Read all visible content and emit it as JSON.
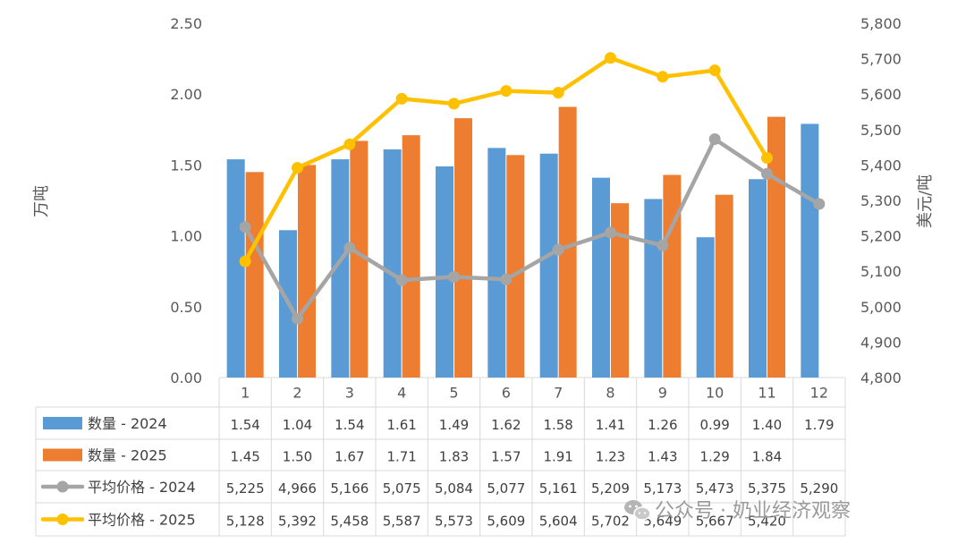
{
  "chart_data": {
    "type": "bar+line",
    "categories": [
      "1",
      "2",
      "3",
      "4",
      "5",
      "6",
      "7",
      "8",
      "9",
      "10",
      "11",
      "12"
    ],
    "ylabel_left": "万吨",
    "ylabel_right": "美元/吨",
    "ylim_left": [
      0,
      2.5
    ],
    "ylim_right": [
      4800,
      5800
    ],
    "left_ticks": [
      "0.00",
      "0.50",
      "1.00",
      "1.50",
      "2.00",
      "2.50"
    ],
    "right_ticks": [
      "4,800",
      "4,900",
      "5,000",
      "5,100",
      "5,200",
      "5,300",
      "5,400",
      "5,500",
      "5,600",
      "5,700",
      "5,800"
    ],
    "series": [
      {
        "name": "数量 - 2024",
        "kind": "bar",
        "axis": "left",
        "color": "#5B9BD5",
        "values": [
          1.54,
          1.04,
          1.54,
          1.61,
          1.49,
          1.62,
          1.58,
          1.41,
          1.26,
          0.99,
          1.4,
          1.79
        ],
        "labels": [
          "1.54",
          "1.04",
          "1.54",
          "1.61",
          "1.49",
          "1.62",
          "1.58",
          "1.41",
          "1.26",
          "0.99",
          "1.40",
          "1.79"
        ]
      },
      {
        "name": "数量 - 2025",
        "kind": "bar",
        "axis": "left",
        "color": "#ED7D31",
        "values": [
          1.45,
          1.5,
          1.67,
          1.71,
          1.83,
          1.57,
          1.91,
          1.23,
          1.43,
          1.29,
          1.84,
          null
        ],
        "labels": [
          "1.45",
          "1.50",
          "1.67",
          "1.71",
          "1.83",
          "1.57",
          "1.91",
          "1.23",
          "1.43",
          "1.29",
          "1.84",
          ""
        ]
      },
      {
        "name": "平均价格 - 2024",
        "kind": "line",
        "axis": "right",
        "color": "#A5A5A5",
        "values": [
          5225,
          4966,
          5166,
          5075,
          5084,
          5077,
          5161,
          5209,
          5173,
          5473,
          5375,
          5290
        ],
        "labels": [
          "5,225",
          "4,966",
          "5,166",
          "5,075",
          "5,084",
          "5,077",
          "5,161",
          "5,209",
          "5,173",
          "5,473",
          "5,375",
          "5,290"
        ]
      },
      {
        "name": "平均价格 - 2025",
        "kind": "line",
        "axis": "right",
        "color": "#FFC000",
        "values": [
          5128,
          5392,
          5458,
          5587,
          5573,
          5609,
          5604,
          5702,
          5649,
          5667,
          5420,
          null
        ],
        "labels": [
          "5,128",
          "5,392",
          "5,458",
          "5,587",
          "5,573",
          "5,609",
          "5,604",
          "5,702",
          "5,649",
          "5,667",
          "5,420",
          ""
        ]
      }
    ],
    "data_table": true
  },
  "watermark": {
    "text": "公众号 · 奶业经济观察",
    "icon": "wechat-icon"
  }
}
